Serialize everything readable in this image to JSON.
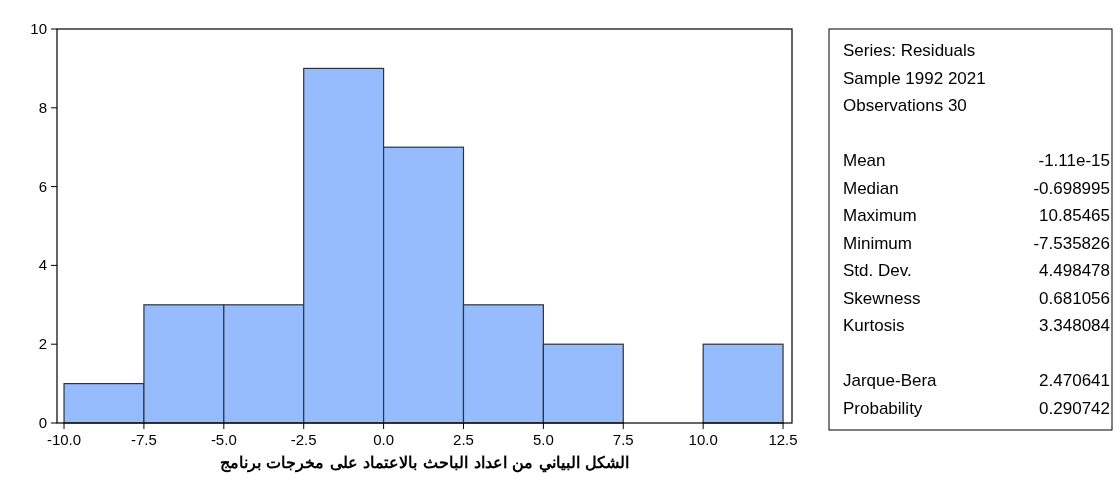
{
  "chart_data": {
    "type": "histogram",
    "bins": [
      -10,
      -7.5,
      -5,
      -2.5,
      0,
      2.5,
      5,
      7.5,
      10,
      12.5
    ],
    "values": [
      1,
      3,
      3,
      9,
      7,
      3,
      2,
      0,
      2
    ],
    "color": "#96bcfe",
    "xlim": [
      -10.22,
      12.78
    ],
    "xticks": [
      {
        "value": -10,
        "label": "-10.0"
      },
      -7.5,
      {
        "value": -5,
        "label": "-5.0"
      },
      -2.5,
      {
        "value": 0,
        "label": "0.0"
      },
      2.5,
      {
        "value": 5,
        "label": "5.0"
      },
      7.5,
      {
        "value": 10,
        "label": "10.0"
      },
      12.5
    ],
    "ylim": [
      0,
      10
    ],
    "yticks": [
      0,
      2,
      4,
      6,
      8,
      10
    ],
    "grid": false,
    "annotations": [
      "Series: Residuals",
      "Sample 1992 2021",
      "Observations 30",
      "Mean",
      "-1.11e-15",
      "Median",
      "-0.698995",
      "Maximum",
      "10.85465",
      "Minimum",
      "-7.535826",
      "Std. Dev.",
      "4.498478",
      "Skewness",
      "0.681056",
      "Kurtosis",
      "3.348084",
      "Jarque-Bera",
      "2.470641",
      "Probability",
      "0.290742",
      "الشكل البياني من اعداد الباحث بالاعتماد على مخرجات برنامج"
    ]
  }
}
